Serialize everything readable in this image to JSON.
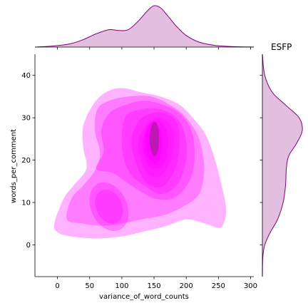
{
  "chart_data": {
    "type": "kde-joint",
    "title": "ESFP",
    "xlabel": "variance_of_word_counts",
    "ylabel": "words_per_comment",
    "xlim": [
      -35,
      305
    ],
    "ylim": [
      -7.5,
      45
    ],
    "xticks": [
      0,
      50,
      100,
      150,
      200,
      250,
      300
    ],
    "yticks": [
      0,
      10,
      20,
      30,
      40
    ],
    "grid": false,
    "colors": {
      "fill": "#ff00ff",
      "marginal_fill": "#c880c0",
      "marginal_line": "#800080"
    },
    "density_levels": [
      {
        "level": 1,
        "opacity": 0.3,
        "outline": [
          [
            -5,
            5
          ],
          [
            0,
            3
          ],
          [
            20,
            2
          ],
          [
            60,
            1.5
          ],
          [
            100,
            2
          ],
          [
            130,
            3
          ],
          [
            170,
            4.5
          ],
          [
            200,
            6
          ],
          [
            230,
            5
          ],
          [
            250,
            4
          ],
          [
            258,
            5
          ],
          [
            262,
            8
          ],
          [
            258,
            12
          ],
          [
            245,
            20
          ],
          [
            230,
            26
          ],
          [
            210,
            30
          ],
          [
            190,
            33
          ],
          [
            160,
            35
          ],
          [
            130,
            36
          ],
          [
            100,
            37
          ],
          [
            75,
            36
          ],
          [
            55,
            33
          ],
          [
            40,
            28
          ],
          [
            40,
            23
          ],
          [
            45,
            18
          ],
          [
            25,
            14
          ],
          [
            10,
            11
          ]
        ]
      },
      {
        "level": 2,
        "opacity": 0.3,
        "outline": [
          [
            15,
            6
          ],
          [
            40,
            5
          ],
          [
            70,
            4.5
          ],
          [
            100,
            5
          ],
          [
            130,
            6
          ],
          [
            165,
            7
          ],
          [
            195,
            9
          ],
          [
            220,
            12
          ],
          [
            228,
            18
          ],
          [
            220,
            25
          ],
          [
            200,
            30
          ],
          [
            175,
            33
          ],
          [
            145,
            35
          ],
          [
            110,
            35
          ],
          [
            80,
            34
          ],
          [
            62,
            32
          ],
          [
            58,
            27
          ],
          [
            66,
            22
          ],
          [
            60,
            18
          ],
          [
            40,
            14
          ],
          [
            22,
            11
          ]
        ]
      },
      {
        "level": 3,
        "opacity": 0.3,
        "outline": [
          [
            60,
            18
          ],
          [
            85,
            17
          ],
          [
            105,
            15
          ],
          [
            125,
            13
          ],
          [
            150,
            11
          ],
          [
            180,
            11
          ],
          [
            205,
            15
          ],
          [
            213,
            21
          ],
          [
            208,
            27
          ],
          [
            190,
            31
          ],
          [
            165,
            33
          ],
          [
            135,
            34
          ],
          [
            105,
            33
          ],
          [
            80,
            31
          ],
          [
            68,
            27
          ],
          [
            72,
            22
          ]
        ]
      },
      {
        "level": 4,
        "opacity": 0.3,
        "outline": [
          [
            100,
            23
          ],
          [
            112,
            17
          ],
          [
            135,
            14
          ],
          [
            160,
            12
          ],
          [
            185,
            14
          ],
          [
            200,
            20
          ],
          [
            198,
            26
          ],
          [
            185,
            30
          ],
          [
            160,
            32
          ],
          [
            130,
            32
          ],
          [
            105,
            30
          ]
        ]
      },
      {
        "level": 5,
        "opacity": 0.3,
        "outline": [
          [
            115,
            24
          ],
          [
            128,
            17
          ],
          [
            145,
            14
          ],
          [
            165,
            14
          ],
          [
            183,
            18
          ],
          [
            190,
            24
          ],
          [
            185,
            29
          ],
          [
            168,
            31
          ],
          [
            145,
            31
          ],
          [
            125,
            29
          ]
        ]
      },
      {
        "level": 6,
        "opacity": 0.3,
        "outline": [
          [
            125,
            24
          ],
          [
            135,
            18
          ],
          [
            150,
            16
          ],
          [
            165,
            17
          ],
          [
            178,
            21
          ],
          [
            180,
            26
          ],
          [
            172,
            29
          ],
          [
            155,
            30
          ],
          [
            137,
            28
          ]
        ]
      },
      {
        "level": 7,
        "opacity": 0.3,
        "outline": [
          [
            132,
            24
          ],
          [
            140,
            19
          ],
          [
            152,
            18
          ],
          [
            165,
            19
          ],
          [
            172,
            23
          ],
          [
            170,
            27
          ],
          [
            160,
            29
          ],
          [
            145,
            29
          ]
        ]
      },
      {
        "level": 8,
        "opacity": 0.4,
        "outline": [
          [
            133,
            24
          ],
          [
            138,
            21
          ],
          [
            148,
            20
          ],
          [
            158,
            21
          ],
          [
            162,
            24
          ],
          [
            160,
            27
          ],
          [
            150,
            29
          ],
          [
            140,
            28
          ]
        ]
      },
      {
        "level": 9,
        "opacity": 0.5,
        "outline": [
          [
            137,
            25
          ],
          [
            141,
            21
          ],
          [
            150,
            19
          ],
          [
            158,
            20
          ],
          [
            163,
            23
          ],
          [
            160,
            27
          ],
          [
            152,
            29
          ],
          [
            142,
            28
          ]
        ]
      },
      {
        "level": 10,
        "opacity": 0.5,
        "outline": [
          [
            143,
            25
          ],
          [
            146,
            22
          ],
          [
            152,
            21
          ],
          [
            157,
            23
          ],
          [
            157,
            27
          ],
          [
            152,
            29
          ],
          [
            146,
            28
          ]
        ]
      }
    ],
    "secondary_mode": {
      "center": [
        80,
        9
      ],
      "levels": [
        {
          "rx": 28,
          "ry": 6,
          "opacity": 0.3
        },
        {
          "rx": 20,
          "ry": 4.2,
          "opacity": 0.3
        }
      ]
    },
    "marginal_x": {
      "x": [
        -35,
        -10,
        20,
        40,
        60,
        80,
        95,
        110,
        125,
        140,
        150,
        160,
        170,
        185,
        200,
        220,
        245,
        275,
        305
      ],
      "density": [
        0,
        0.02,
        0.08,
        0.18,
        0.32,
        0.42,
        0.4,
        0.42,
        0.62,
        0.88,
        1.0,
        0.95,
        0.78,
        0.5,
        0.28,
        0.12,
        0.04,
        0.01,
        0
      ]
    },
    "marginal_y": {
      "y": [
        -7.5,
        -3,
        0,
        3,
        6,
        10,
        14,
        18,
        21,
        24,
        27,
        30,
        33,
        36,
        40,
        45
      ],
      "density": [
        0,
        0.01,
        0.06,
        0.2,
        0.38,
        0.52,
        0.58,
        0.6,
        0.66,
        0.86,
        1.0,
        0.92,
        0.58,
        0.25,
        0.06,
        0
      ]
    }
  }
}
